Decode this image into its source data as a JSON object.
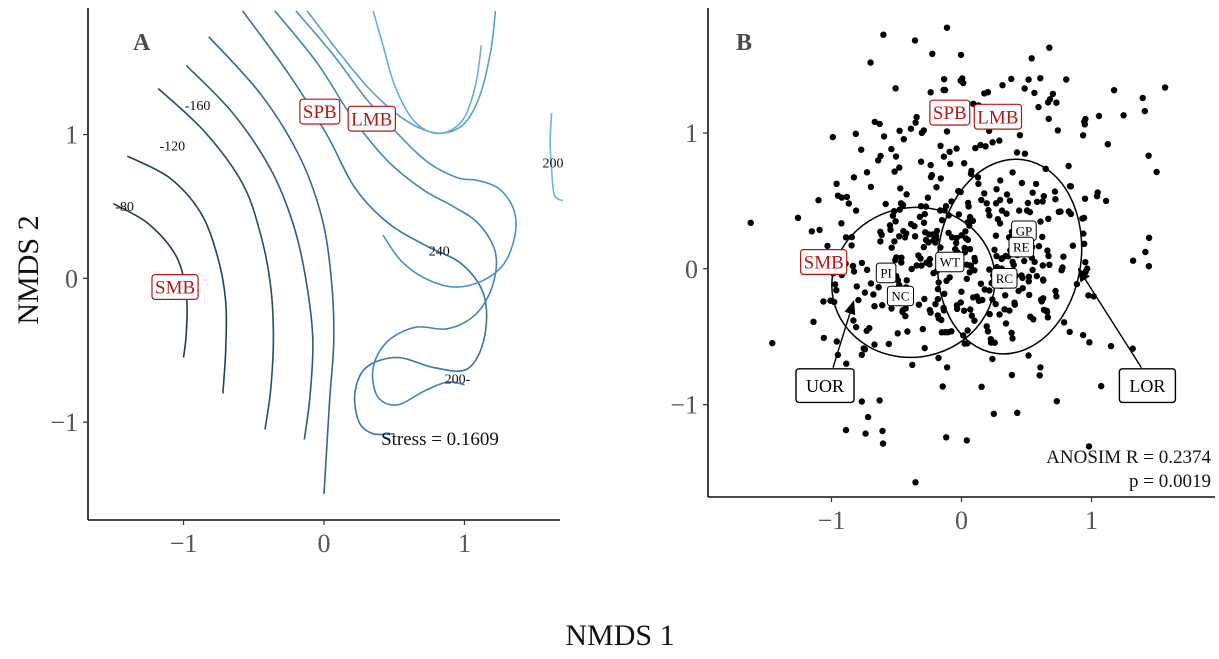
{
  "figure": {
    "xlabel": "NMDS 1",
    "ylabel": "NMDS 2"
  },
  "chart_data": [
    {
      "type": "contour",
      "panel_label": "A",
      "xlim": [
        -1.68,
        1.68
      ],
      "ylim": [
        -1.68,
        1.88
      ],
      "x_ticks": [
        -1,
        0,
        1
      ],
      "y_ticks": [
        -1,
        0,
        1
      ],
      "x_tick_labels": [
        "−1",
        "0",
        "1"
      ],
      "y_tick_labels": [
        "−1",
        "0",
        "1"
      ],
      "contour_labels": [
        {
          "text": "-160",
          "x": -0.9,
          "y": 1.17
        },
        {
          "text": "-120",
          "x": -1.08,
          "y": 0.89
        },
        {
          "text": "-80",
          "x": -1.42,
          "y": 0.47
        },
        {
          "text": "240",
          "x": 0.82,
          "y": 0.16
        },
        {
          "text": "200",
          "x": 1.63,
          "y": 0.77
        },
        {
          "text": "200-",
          "x": 0.95,
          "y": -0.73
        }
      ],
      "contours": [
        {
          "points": [
            [
              -1.5,
              0.52
            ],
            [
              -1.25,
              0.38
            ],
            [
              -1.05,
              0.15
            ],
            [
              -0.98,
              -0.12
            ],
            [
              -0.98,
              -0.38
            ],
            [
              -1.0,
              -0.55
            ]
          ]
        },
        {
          "points": [
            [
              -1.4,
              0.85
            ],
            [
              -1.1,
              0.7
            ],
            [
              -0.88,
              0.46
            ],
            [
              -0.76,
              0.16
            ],
            [
              -0.7,
              -0.16
            ],
            [
              -0.7,
              -0.5
            ],
            [
              -0.72,
              -0.8
            ]
          ]
        },
        {
          "points": [
            [
              -1.18,
              1.32
            ],
            [
              -0.85,
              1.02
            ],
            [
              -0.58,
              0.66
            ],
            [
              -0.45,
              0.3
            ],
            [
              -0.38,
              -0.05
            ],
            [
              -0.36,
              -0.42
            ],
            [
              -0.38,
              -0.78
            ],
            [
              -0.42,
              -1.05
            ]
          ]
        },
        {
          "points": [
            [
              -0.98,
              1.48
            ],
            [
              -0.65,
              1.15
            ],
            [
              -0.38,
              0.76
            ],
            [
              -0.22,
              0.38
            ],
            [
              -0.13,
              0.0
            ],
            [
              -0.08,
              -0.42
            ],
            [
              -0.1,
              -0.82
            ],
            [
              -0.14,
              -1.12
            ]
          ]
        },
        {
          "points": [
            [
              -0.82,
              1.68
            ],
            [
              -0.45,
              1.28
            ],
            [
              -0.18,
              0.86
            ],
            [
              -0.02,
              0.44
            ],
            [
              0.05,
              0.02
            ],
            [
              0.07,
              -0.42
            ],
            [
              0.04,
              -0.85
            ],
            [
              0.0,
              -1.5
            ]
          ]
        },
        {
          "points": [
            [
              -0.58,
              1.86
            ],
            [
              -0.25,
              1.42
            ],
            [
              0.02,
              1.0
            ],
            [
              0.22,
              0.63
            ],
            [
              0.45,
              0.39
            ],
            [
              0.72,
              0.23
            ],
            [
              0.98,
              0.1
            ],
            [
              1.14,
              -0.12
            ],
            [
              1.14,
              -0.42
            ],
            [
              1.02,
              -0.63
            ],
            [
              0.78,
              -0.62
            ],
            [
              0.52,
              -0.55
            ],
            [
              0.3,
              -0.62
            ],
            [
              0.22,
              -0.8
            ],
            [
              0.25,
              -1.0
            ],
            [
              0.35,
              -1.08
            ],
            [
              0.5,
              -1.08
            ]
          ]
        },
        {
          "points": [
            [
              -0.35,
              1.86
            ],
            [
              -0.05,
              1.5
            ],
            [
              0.2,
              1.12
            ],
            [
              0.45,
              0.82
            ],
            [
              0.7,
              0.62
            ],
            [
              0.92,
              0.5
            ],
            [
              1.1,
              0.38
            ],
            [
              1.22,
              0.18
            ],
            [
              1.2,
              -0.05
            ],
            [
              1.08,
              -0.25
            ],
            [
              0.88,
              -0.35
            ],
            [
              0.65,
              -0.34
            ],
            [
              0.45,
              -0.44
            ],
            [
              0.35,
              -0.62
            ],
            [
              0.38,
              -0.82
            ],
            [
              0.52,
              -0.88
            ],
            [
              0.72,
              -0.78
            ],
            [
              0.88,
              -0.72
            ],
            [
              1.0,
              -0.74
            ]
          ]
        },
        {
          "points": [
            [
              -0.2,
              1.86
            ],
            [
              0.07,
              1.55
            ],
            [
              0.3,
              1.25
            ],
            [
              0.55,
              0.98
            ],
            [
              0.75,
              0.8
            ],
            [
              0.95,
              0.7
            ],
            [
              1.1,
              0.68
            ],
            [
              1.25,
              0.62
            ],
            [
              1.35,
              0.48
            ],
            [
              1.36,
              0.3
            ],
            [
              1.28,
              0.1
            ],
            [
              1.12,
              -0.02
            ],
            [
              0.92,
              -0.06
            ],
            [
              0.72,
              0.0
            ],
            [
              0.55,
              0.12
            ],
            [
              0.42,
              0.3
            ]
          ]
        },
        {
          "points": [
            [
              -0.12,
              1.86
            ],
            [
              0.1,
              1.58
            ],
            [
              0.32,
              1.32
            ],
            [
              0.55,
              1.12
            ],
            [
              0.75,
              1.02
            ],
            [
              0.9,
              1.02
            ],
            [
              1.02,
              1.1
            ],
            [
              1.12,
              1.3
            ],
            [
              1.19,
              1.6
            ],
            [
              1.22,
              1.86
            ]
          ]
        },
        {
          "points": [
            [
              0.35,
              1.86
            ],
            [
              0.42,
              1.62
            ],
            [
              0.5,
              1.35
            ],
            [
              0.62,
              1.12
            ],
            [
              0.75,
              1.02
            ],
            [
              0.88,
              1.02
            ],
            [
              1.0,
              1.12
            ],
            [
              1.08,
              1.35
            ],
            [
              1.12,
              1.62
            ]
          ]
        },
        {
          "points": [
            [
              1.62,
              1.15
            ],
            [
              1.61,
              0.95
            ],
            [
              1.62,
              0.76
            ],
            [
              1.64,
              0.58
            ],
            [
              1.7,
              0.54
            ]
          ]
        }
      ],
      "contour_colors": [
        "#1f3a52",
        "#24425d",
        "#2a4d6c",
        "#30597d",
        "#36668f",
        "#3c74a2",
        "#4583b6",
        "#4d91c6",
        "#5a9fd4",
        "#68aedf",
        "#6fb3e2"
      ],
      "species_labels": [
        {
          "text": "SPB",
          "x": -0.03,
          "y": 1.16
        },
        {
          "text": "LMB",
          "x": 0.34,
          "y": 1.11
        },
        {
          "text": "SMB",
          "x": -1.06,
          "y": -0.06
        }
      ],
      "stress_text": "Stress = 0.1609"
    },
    {
      "type": "scatter",
      "panel_label": "B",
      "xlim": [
        -1.95,
        1.95
      ],
      "ylim": [
        -1.68,
        1.92
      ],
      "x_ticks": [
        -1,
        0,
        1
      ],
      "y_ticks": [
        -1,
        0,
        1
      ],
      "x_tick_labels": [
        "−1",
        "0",
        "1"
      ],
      "y_tick_labels": [
        "−1",
        "0",
        "1"
      ],
      "ellipses": [
        {
          "name": "UOR",
          "cx": -0.37,
          "cy": -0.1,
          "rx": 0.63,
          "ry": 0.55,
          "angle": -12
        },
        {
          "name": "LOR",
          "cx": 0.37,
          "cy": 0.09,
          "rx": 0.55,
          "ry": 0.72,
          "angle": 8
        }
      ],
      "callouts": [
        {
          "text": "UOR",
          "x": -1.05,
          "y": -0.86,
          "arrow_to": [
            -0.83,
            -0.24
          ]
        },
        {
          "text": "LOR",
          "x": 1.43,
          "y": -0.86,
          "arrow_to": [
            0.9,
            0.0
          ]
        }
      ],
      "site_labels": [
        {
          "text": "PI",
          "x": -0.58,
          "y": -0.03
        },
        {
          "text": "NC",
          "x": -0.47,
          "y": -0.2
        },
        {
          "text": "WT",
          "x": -0.09,
          "y": 0.05
        },
        {
          "text": "GP",
          "x": 0.48,
          "y": 0.28
        },
        {
          "text": "RE",
          "x": 0.46,
          "y": 0.16
        },
        {
          "text": "RC",
          "x": 0.33,
          "y": -0.07
        }
      ],
      "species_labels": [
        {
          "text": "SPB",
          "x": -0.09,
          "y": 1.15
        },
        {
          "text": "LMB",
          "x": 0.28,
          "y": 1.12
        },
        {
          "text": "SMB",
          "x": -1.06,
          "y": 0.05
        }
      ],
      "anosim_text": "ANOSIM R = 0.2374",
      "p_text": "p = 0.0019",
      "seed": 20231
    }
  ]
}
